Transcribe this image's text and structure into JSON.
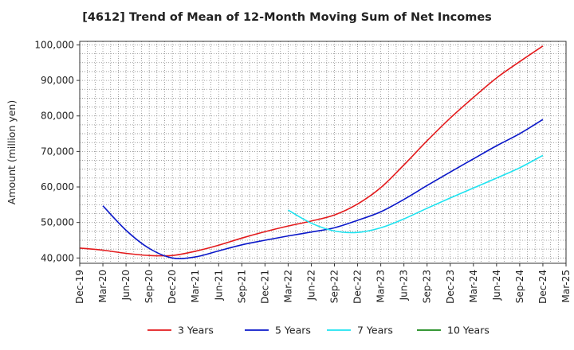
{
  "chart_data": {
    "type": "line",
    "title": "[4612]  Trend of Mean of 12-Month Moving Sum of Net Incomes",
    "ylabel": "Amount (million yen)",
    "xlabel": "",
    "ylim": [
      38500,
      101000
    ],
    "xlim": [
      "Dec-19",
      "Mar-25"
    ],
    "y_ticks": [
      "40,000",
      "50,000",
      "60,000",
      "70,000",
      "80,000",
      "90,000",
      "100,000"
    ],
    "y_tick_values": [
      40000,
      50000,
      60000,
      70000,
      80000,
      90000,
      100000
    ],
    "x_tick_labels": [
      "Dec-19",
      "Mar-20",
      "Jun-20",
      "Sep-20",
      "Dec-20",
      "Mar-21",
      "Jun-21",
      "Sep-21",
      "Dec-21",
      "Mar-22",
      "Jun-22",
      "Sep-22",
      "Dec-22",
      "Mar-23",
      "Jun-23",
      "Sep-23",
      "Dec-23",
      "Mar-24",
      "Jun-24",
      "Sep-24",
      "Dec-24",
      "Mar-25"
    ],
    "grid": true,
    "legend_position": "bottom",
    "series": [
      {
        "name": "3 Years",
        "color": "#e31a1c",
        "points": [
          [
            "Dec-19",
            42800
          ],
          [
            "Mar-20",
            42200
          ],
          [
            "Jun-20",
            41300
          ],
          [
            "Sep-20",
            40700
          ],
          [
            "Dec-20",
            40700
          ],
          [
            "Mar-21",
            41900
          ],
          [
            "Jun-21",
            43600
          ],
          [
            "Sep-21",
            45600
          ],
          [
            "Dec-21",
            47400
          ],
          [
            "Mar-22",
            49000
          ],
          [
            "Jun-22",
            50400
          ],
          [
            "Sep-22",
            52100
          ],
          [
            "Dec-22",
            55200
          ],
          [
            "Mar-23",
            59800
          ],
          [
            "Jun-23",
            66200
          ],
          [
            "Sep-23",
            73000
          ],
          [
            "Dec-23",
            79400
          ],
          [
            "Mar-24",
            85200
          ],
          [
            "Jun-24",
            90700
          ],
          [
            "Sep-24",
            95300
          ],
          [
            "Dec-24",
            99700
          ]
        ]
      },
      {
        "name": "5 Years",
        "color": "#0a17c9",
        "points": [
          [
            "Mar-20",
            54700
          ],
          [
            "Jun-20",
            47800
          ],
          [
            "Sep-20",
            42700
          ],
          [
            "Dec-20",
            40000
          ],
          [
            "Mar-21",
            40300
          ],
          [
            "Jun-21",
            42000
          ],
          [
            "Sep-21",
            43700
          ],
          [
            "Dec-21",
            45000
          ],
          [
            "Mar-22",
            46200
          ],
          [
            "Jun-22",
            47300
          ],
          [
            "Sep-22",
            48500
          ],
          [
            "Dec-22",
            50600
          ],
          [
            "Mar-23",
            53000
          ],
          [
            "Jun-23",
            56500
          ],
          [
            "Sep-23",
            60400
          ],
          [
            "Dec-23",
            64200
          ],
          [
            "Mar-24",
            67900
          ],
          [
            "Jun-24",
            71600
          ],
          [
            "Sep-24",
            75000
          ],
          [
            "Dec-24",
            79000
          ]
        ]
      },
      {
        "name": "7 Years",
        "color": "#1ee3f0",
        "points": [
          [
            "Mar-22",
            53500
          ],
          [
            "Jun-22",
            49800
          ],
          [
            "Sep-22",
            47600
          ],
          [
            "Dec-22",
            47200
          ],
          [
            "Mar-23",
            48500
          ],
          [
            "Jun-23",
            51000
          ],
          [
            "Sep-23",
            54000
          ],
          [
            "Dec-23",
            56900
          ],
          [
            "Mar-24",
            59700
          ],
          [
            "Jun-24",
            62500
          ],
          [
            "Sep-24",
            65400
          ],
          [
            "Dec-24",
            68900
          ]
        ]
      },
      {
        "name": "10 Years",
        "color": "#1a8a1a",
        "points": []
      }
    ]
  }
}
